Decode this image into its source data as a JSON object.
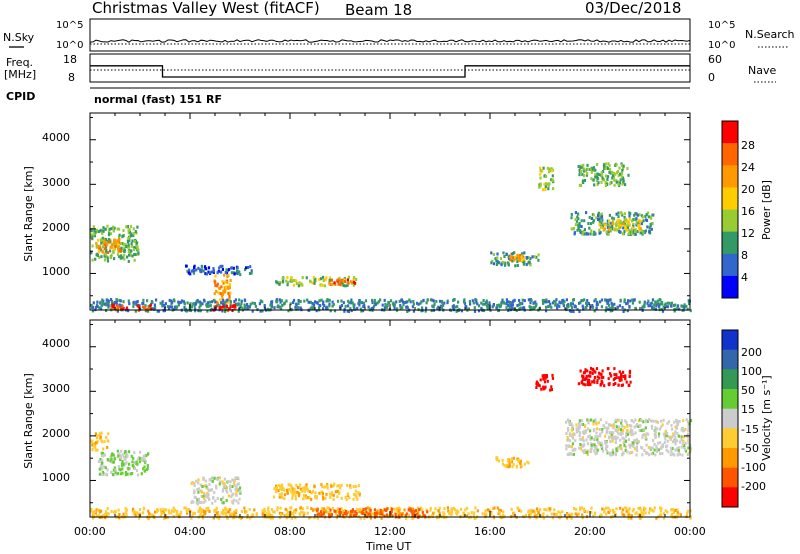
{
  "header": {
    "station": "Christmas Valley West (fitACF)",
    "beam": "Beam 18",
    "date": "03/Dec/2018"
  },
  "noise_panel": {
    "left_label": "N.Sky",
    "right_label": "N.Search",
    "left_ticks": [
      "10^5",
      "10^0"
    ],
    "right_ticks": [
      "10^5",
      "10^0"
    ]
  },
  "freq_panel": {
    "left_label_1": "Freq.",
    "left_label_2": "[MHz]",
    "right_label": "Nave",
    "left_ticks": [
      "18",
      "8"
    ],
    "right_ticks": [
      "60",
      "0"
    ]
  },
  "cpid_panel": {
    "label": "CPID",
    "text": "normal (fast) 151 RF"
  },
  "power_panel": {
    "ylabel": "Slant Range [km]",
    "yticks": [
      "4000",
      "3000",
      "2000",
      "1000"
    ],
    "colorbar_label": "Power [dB]",
    "colorbar_ticks": [
      "28",
      "24",
      "20",
      "16",
      "12",
      "8",
      "4"
    ],
    "colorbar_colors": [
      "#ff0000",
      "#ff6600",
      "#ff9900",
      "#ffcc00",
      "#99cc33",
      "#339966",
      "#3366cc",
      "#0000ff"
    ]
  },
  "velocity_panel": {
    "ylabel": "Slant Range [km]",
    "yticks": [
      "4000",
      "3000",
      "2000",
      "1000"
    ],
    "colorbar_label": "Velocity [m s⁻¹]",
    "colorbar_ticks": [
      "200",
      "100",
      "50",
      "15",
      "-15",
      "-50",
      "-100",
      "-200"
    ],
    "colorbar_colors": [
      "#1133cc",
      "#3366aa",
      "#339955",
      "#66cc33",
      "#cccccc",
      "#ffcc33",
      "#ff9900",
      "#ff5500",
      "#ff0000"
    ]
  },
  "x_axis": {
    "ticks": [
      "00:00",
      "04:00",
      "08:00",
      "12:00",
      "16:00",
      "20:00",
      "00:00"
    ],
    "label": "Time UT"
  },
  "chart_data": {
    "type": "heatmap",
    "x_range_hours": [
      0,
      24
    ],
    "y_range_km": [
      180,
      4600
    ],
    "freq_segments_mhz": [
      {
        "start": 0,
        "end": 2.9,
        "value": 14.5
      },
      {
        "start": 2.9,
        "end": 15.0,
        "value": 10.5
      },
      {
        "start": 15.0,
        "end": 24,
        "value": 14.5
      }
    ],
    "power_patches": [
      {
        "t0": 0.0,
        "t1": 1.9,
        "r0": 1300,
        "r1": 2100,
        "db": 12
      },
      {
        "t0": 0.2,
        "t1": 1.2,
        "r0": 1500,
        "r1": 1800,
        "db": 22
      },
      {
        "t0": 3.8,
        "t1": 6.6,
        "r0": 1000,
        "r1": 1200,
        "db": 6
      },
      {
        "t0": 4.9,
        "t1": 5.6,
        "r0": 350,
        "r1": 1000,
        "db": 22
      },
      {
        "t0": 7.4,
        "t1": 10.7,
        "r0": 750,
        "r1": 950,
        "db": 14
      },
      {
        "t0": 9.4,
        "t1": 10.6,
        "r0": 780,
        "r1": 900,
        "db": 26
      },
      {
        "t0": 16.0,
        "t1": 17.9,
        "r0": 1200,
        "r1": 1500,
        "db": 10
      },
      {
        "t0": 16.7,
        "t1": 17.3,
        "r0": 1320,
        "r1": 1440,
        "db": 22
      },
      {
        "t0": 17.9,
        "t1": 18.5,
        "r0": 2900,
        "r1": 3400,
        "db": 14
      },
      {
        "t0": 19.5,
        "t1": 21.5,
        "r0": 3000,
        "r1": 3500,
        "db": 12
      },
      {
        "t0": 19.2,
        "t1": 22.5,
        "r0": 1900,
        "r1": 2400,
        "db": 10
      },
      {
        "t0": 20.3,
        "t1": 22.0,
        "r0": 2000,
        "r1": 2250,
        "db": 18
      },
      {
        "t0": 0.0,
        "t1": 24.0,
        "r0": 180,
        "r1": 450,
        "db": 8
      },
      {
        "t0": 0.8,
        "t1": 2.4,
        "r0": 200,
        "r1": 330,
        "db": 28
      },
      {
        "t0": 4.9,
        "t1": 5.8,
        "r0": 200,
        "r1": 330,
        "db": 30
      }
    ],
    "velocity_patches": [
      {
        "t0": 0.0,
        "t1": 0.7,
        "r0": 1700,
        "r1": 2100,
        "v": -40
      },
      {
        "t0": 0.3,
        "t1": 2.3,
        "r0": 1150,
        "r1": 1700,
        "v": 20
      },
      {
        "t0": 4.0,
        "t1": 6.0,
        "r0": 500,
        "r1": 1100,
        "v": 0
      },
      {
        "t0": 7.3,
        "t1": 10.8,
        "r0": 600,
        "r1": 950,
        "v": -40
      },
      {
        "t0": 16.2,
        "t1": 17.5,
        "r0": 1300,
        "r1": 1550,
        "v": -40
      },
      {
        "t0": 17.8,
        "t1": 18.5,
        "r0": 3050,
        "r1": 3400,
        "v": -220
      },
      {
        "t0": 19.5,
        "t1": 21.6,
        "r0": 3150,
        "r1": 3550,
        "v": -220
      },
      {
        "t0": 19.0,
        "t1": 24.0,
        "r0": 1600,
        "r1": 2400,
        "v": 0
      },
      {
        "t0": 0.0,
        "t1": 24.0,
        "r0": 180,
        "r1": 420,
        "v": -40
      },
      {
        "t0": 9.0,
        "t1": 13.5,
        "r0": 200,
        "r1": 400,
        "v": -110
      }
    ]
  }
}
